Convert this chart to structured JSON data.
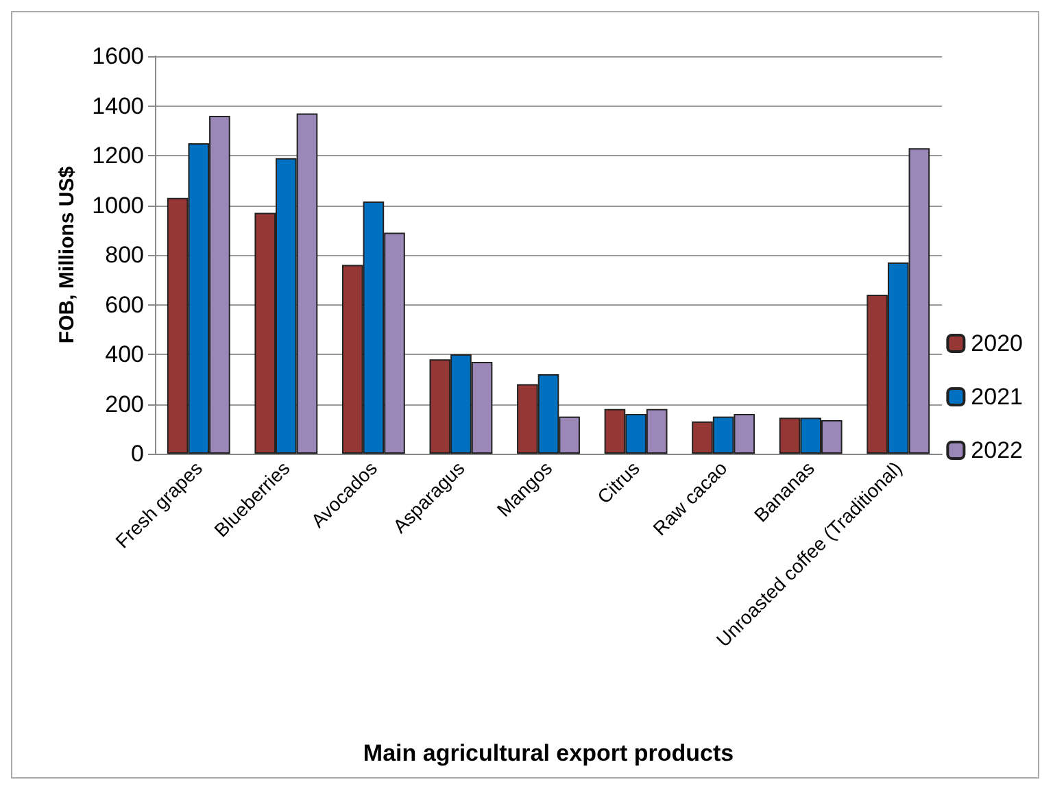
{
  "chart_data": {
    "type": "bar",
    "xlabel": "Main agricultural export products",
    "ylabel": "FOB, Millions US$",
    "categories": [
      "Fresh grapes",
      "Blueberries",
      "Avocados",
      "Asparagus",
      "Mangos",
      "Citrus",
      "Raw cacao",
      "Bananas",
      "Unroasted coffee (Traditional)"
    ],
    "series": [
      {
        "name": "2020",
        "color": "#953735",
        "values": [
          1030,
          970,
          760,
          380,
          280,
          180,
          130,
          145,
          640
        ]
      },
      {
        "name": "2021",
        "color": "#0070c0",
        "values": [
          1250,
          1190,
          1015,
          400,
          320,
          160,
          150,
          145,
          770
        ]
      },
      {
        "name": "2022",
        "color": "#9b88b8",
        "values": [
          1360,
          1370,
          890,
          370,
          150,
          180,
          160,
          135,
          1230
        ]
      }
    ],
    "ylim": [
      0,
      1600
    ],
    "yticks": [
      0,
      200,
      400,
      600,
      800,
      1000,
      1200,
      1400,
      1600
    ],
    "grid": "y",
    "legend": "bottom right"
  }
}
